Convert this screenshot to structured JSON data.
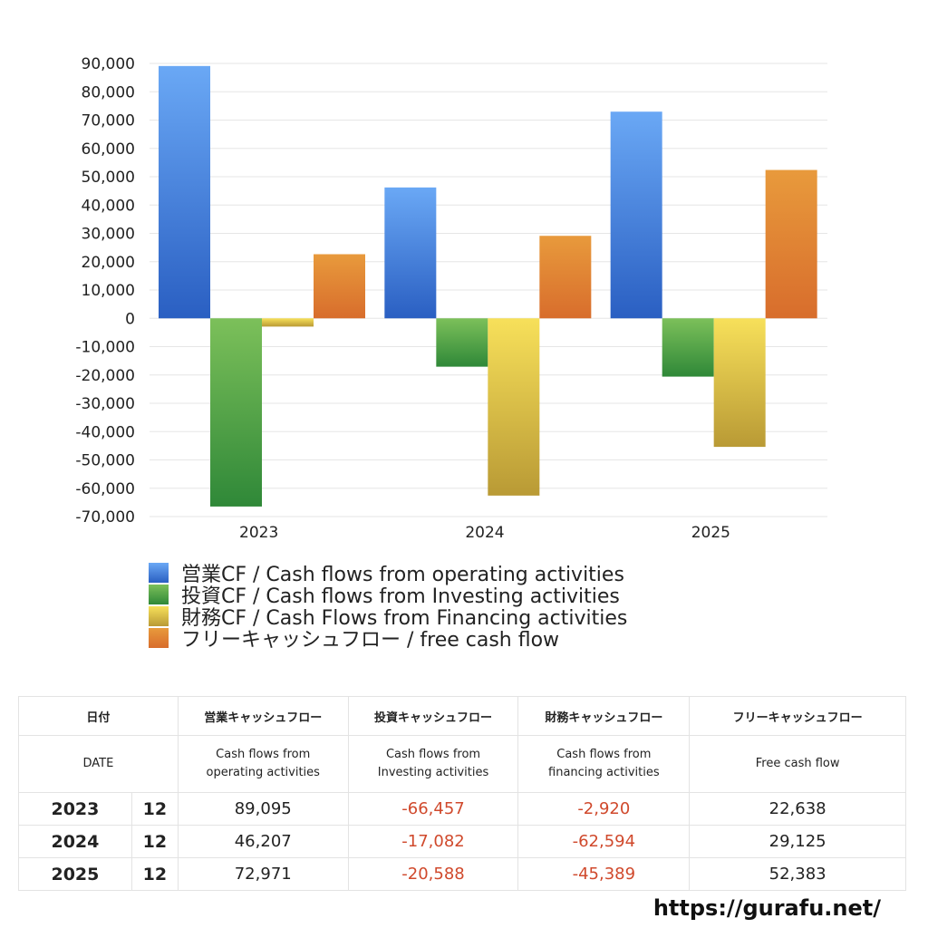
{
  "chart_data": {
    "type": "bar",
    "categories": [
      "2023",
      "2024",
      "2025"
    ],
    "series": [
      {
        "name": "営業CF / Cash flows from operating activities",
        "values": [
          89095,
          46207,
          72971
        ],
        "color": "#3f7fe0"
      },
      {
        "name": "投資CF / Cash flows from Investing activities",
        "values": [
          -66457,
          -17082,
          -20588
        ],
        "color": "#4aa046"
      },
      {
        "name": "財務CF / Cash Flows from Financing activities",
        "values": [
          -2920,
          -62594,
          -45389
        ],
        "color": "#e8cc45"
      },
      {
        "name": "フリーキャッシュフロー / free cash flow",
        "values": [
          22638,
          29125,
          52383
        ],
        "color": "#e2802e"
      }
    ],
    "ylim": [
      -70000,
      90000
    ],
    "yticks": [
      "90,000",
      "80,000",
      "70,000",
      "60,000",
      "50,000",
      "40,000",
      "30,000",
      "20,000",
      "10,000",
      "0",
      "-10,000",
      "-20,000",
      "-30,000",
      "-40,000",
      "-50,000",
      "-60,000",
      "-70,000"
    ],
    "grid": true,
    "legend": "bottom"
  },
  "table": {
    "header1": [
      "日付",
      "",
      "営業キャッシュフロー",
      "投資キャッシュフロー",
      "財務キャッシュフロー",
      "フリーキャッシュフロー"
    ],
    "header2": {
      "date": "DATE",
      "op_line1": "Cash flows from",
      "op_line2": "operating activities",
      "inv_line1": "Cash flows from",
      "inv_line2": "Investing activities",
      "fin_line1": "Cash flows from",
      "fin_line2": "financing activities",
      "fcf": "Free cash flow"
    },
    "rows": [
      {
        "year": "2023",
        "month": "12",
        "op": "89,095",
        "inv": "-66,457",
        "fin": "-2,920",
        "fcf": "22,638"
      },
      {
        "year": "2024",
        "month": "12",
        "op": "46,207",
        "inv": "-17,082",
        "fin": "-62,594",
        "fcf": "29,125"
      },
      {
        "year": "2025",
        "month": "12",
        "op": "72,971",
        "inv": "-20,588",
        "fin": "-45,389",
        "fcf": "52,383"
      }
    ]
  },
  "footer": {
    "url": "https://gurafu.net/"
  }
}
